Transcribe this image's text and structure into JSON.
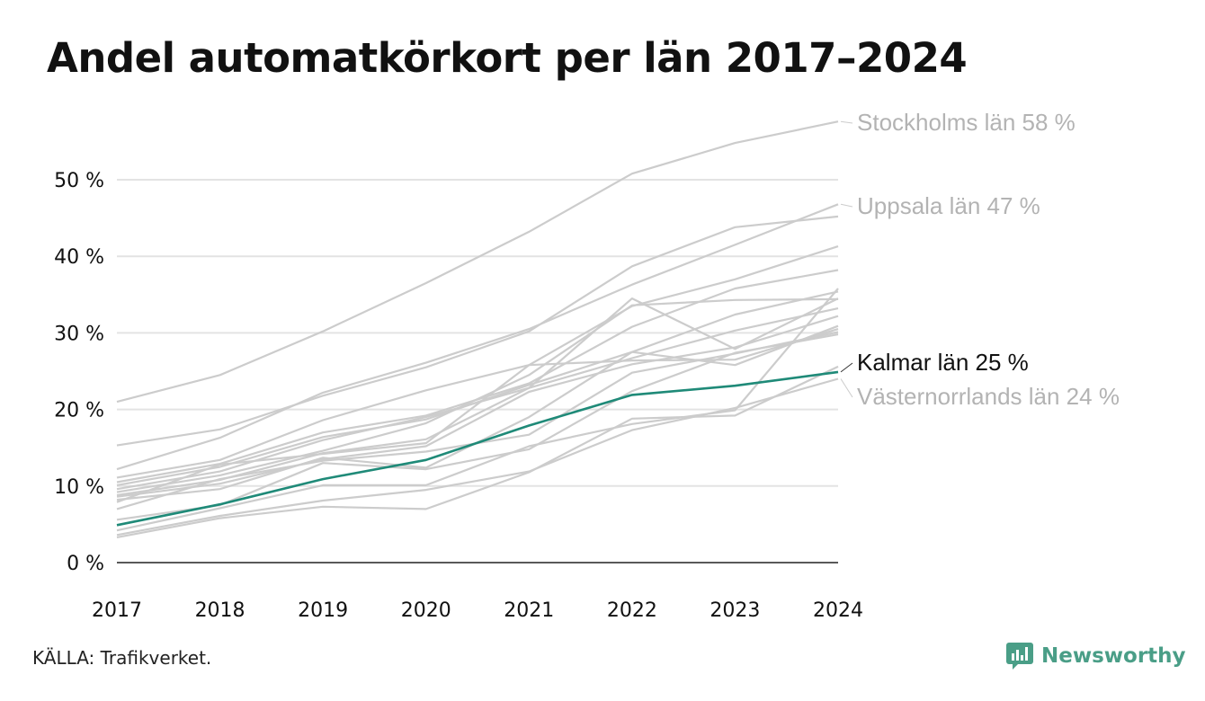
{
  "title": "Andel automatkörkort per län 2017–2024",
  "source": "KÄLLA: Trafikverket.",
  "brand": {
    "name": "Newsworthy",
    "icon": "newsworthy-logo-icon",
    "color": "#4a9e87"
  },
  "colors": {
    "background": "#ffffff",
    "grid": "#e3e3e3",
    "axis": "#222222",
    "context_line": "#cccccc",
    "highlight": "#1f8a78",
    "muted_label": "#b3b3b3"
  },
  "chart_data": {
    "type": "line",
    "title": "Andel automatkörkort per län 2017–2024",
    "xlabel": "",
    "ylabel": "",
    "x": [
      2017,
      2018,
      2019,
      2020,
      2021,
      2022,
      2023,
      2024
    ],
    "ylim": [
      0,
      58
    ],
    "yticks": [
      0,
      10,
      20,
      30,
      40,
      50
    ],
    "ytick_labels": [
      "0 %",
      "10 %",
      "20 %",
      "30 %",
      "40 %",
      "50 %"
    ],
    "xtick_labels": [
      "2017",
      "2018",
      "2019",
      "2020",
      "2021",
      "2022",
      "2023",
      "2024"
    ],
    "grid": true,
    "series": [
      {
        "name": "Stockholms län",
        "label": "Stockholms län 58 %",
        "values": [
          21,
          24.5,
          30.2,
          36.5,
          43.2,
          50.8,
          54.8,
          57.6
        ],
        "role": "labeled-context"
      },
      {
        "name": "Uppsala län",
        "label": "Uppsala län 47 %",
        "values": [
          12.2,
          16.3,
          22.2,
          26.1,
          30.5,
          36.3,
          41.5,
          46.8
        ],
        "role": "labeled-context"
      },
      {
        "name": "Kalmar län",
        "label": "Kalmar län 25 %",
        "values": [
          4.9,
          7.6,
          10.9,
          13.4,
          17.9,
          21.9,
          23.1,
          24.9
        ],
        "role": "highlight"
      },
      {
        "name": "Västernorrlands län",
        "label": "Västernorrlands län 24 %",
        "values": [
          3.6,
          6.1,
          8.1,
          9.5,
          11.9,
          17.3,
          20.2,
          24.0
        ],
        "role": "labeled-context"
      },
      {
        "values": [
          15.3,
          17.4,
          21.8,
          25.5,
          30.2,
          38.7,
          43.8,
          45.2
        ],
        "role": "context"
      },
      {
        "values": [
          11.1,
          13.4,
          18.6,
          22.5,
          25.8,
          33.5,
          37.0,
          41.3
        ],
        "role": "context"
      },
      {
        "values": [
          10.5,
          12.9,
          17.0,
          19.2,
          23.4,
          30.8,
          35.8,
          38.2
        ],
        "role": "context"
      },
      {
        "values": [
          10.1,
          12.5,
          16.4,
          18.7,
          23.2,
          27.5,
          32.4,
          35.4
        ],
        "role": "context"
      },
      {
        "values": [
          9.6,
          11.9,
          16.0,
          19.0,
          22.8,
          34.5,
          27.9,
          34.5
        ],
        "role": "context"
      },
      {
        "values": [
          9.2,
          11.4,
          14.6,
          18.2,
          24.5,
          33.6,
          34.3,
          34.4
        ],
        "role": "context"
      },
      {
        "values": [
          8.8,
          10.8,
          14.3,
          16.1,
          22.8,
          26.7,
          30.3,
          33.2
        ],
        "role": "context"
      },
      {
        "values": [
          8.6,
          10.3,
          13.5,
          15.2,
          22.3,
          25.9,
          28.1,
          32.2
        ],
        "role": "context"
      },
      {
        "values": [
          8.2,
          9.6,
          13.7,
          12.4,
          19.0,
          27.5,
          25.8,
          30.9
        ],
        "role": "context"
      },
      {
        "values": [
          7.9,
          12.8,
          14.2,
          15.6,
          25.8,
          26.4,
          26.5,
          30.5
        ],
        "role": "context"
      },
      {
        "values": [
          7.0,
          10.9,
          13.3,
          14.5,
          16.7,
          24.8,
          27.3,
          30.1
        ],
        "role": "context"
      },
      {
        "values": [
          5.6,
          7.5,
          13.0,
          12.2,
          14.8,
          22.4,
          27.4,
          29.8
        ],
        "role": "context"
      },
      {
        "values": [
          4.2,
          7.1,
          10.1,
          10.1,
          15.2,
          18.1,
          19.9,
          35.8
        ],
        "role": "context"
      },
      {
        "values": [
          3.3,
          5.8,
          7.3,
          7.0,
          11.8,
          18.8,
          19.2,
          25.6
        ],
        "role": "context"
      }
    ]
  }
}
